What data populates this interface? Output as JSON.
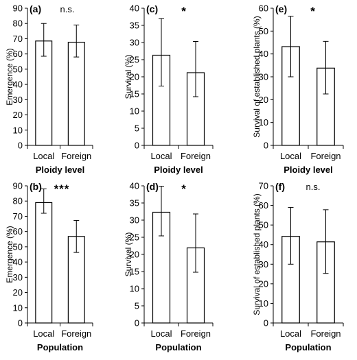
{
  "chart_data": [
    {
      "type": "bar",
      "panel_label": "(a)",
      "significance": "n.s.",
      "categories": [
        "Local",
        "Foreign"
      ],
      "values": [
        68.5,
        67.7
      ],
      "errors_upper": [
        80,
        79
      ],
      "errors_lower": [
        58.5,
        58
      ],
      "xlabel": "Ploidy level",
      "ylabel": "Emergence (%)",
      "ylim": [
        0,
        90
      ],
      "yticks": [
        "0",
        "10",
        "20",
        "30",
        "40",
        "50",
        "60",
        "70",
        "80",
        "90"
      ]
    },
    {
      "type": "bar",
      "panel_label": "(c)",
      "significance": "*",
      "categories": [
        "Local",
        "Foreign"
      ],
      "values": [
        26.3,
        21.2
      ],
      "errors_upper": [
        37,
        30.3
      ],
      "errors_lower": [
        17.3,
        14.2
      ],
      "xlabel": "Ploidy level",
      "ylabel": "Survival (%)",
      "ylim": [
        0,
        40
      ],
      "yticks": [
        "0",
        "5",
        "10",
        "15",
        "20",
        "25",
        "30",
        "35",
        "40"
      ]
    },
    {
      "type": "bar",
      "panel_label": "(e)",
      "significance": "*",
      "categories": [
        "Local",
        "Foreign"
      ],
      "values": [
        43.2,
        33.8
      ],
      "errors_upper": [
        56.5,
        45.5
      ],
      "errors_lower": [
        30,
        22.5
      ],
      "xlabel": "Ploidy level",
      "ylabel": "Survival of established plants (%)",
      "ylim": [
        0,
        60
      ],
      "yticks": [
        "0",
        "10",
        "20",
        "30",
        "40",
        "50",
        "60"
      ]
    },
    {
      "type": "bar",
      "panel_label": "(b)",
      "significance": "***",
      "categories": [
        "Local",
        "Foreign"
      ],
      "values": [
        79,
        56.8
      ],
      "errors_upper": [
        88,
        67.3
      ],
      "errors_lower": [
        72,
        46.3
      ],
      "xlabel": "Population",
      "ylabel": "Emergence (%)",
      "ylim": [
        0,
        90
      ],
      "yticks": [
        "0",
        "10",
        "20",
        "30",
        "40",
        "50",
        "60",
        "70",
        "80",
        "90"
      ]
    },
    {
      "type": "bar",
      "panel_label": "(d)",
      "significance": "*",
      "categories": [
        "Local",
        "Foreign"
      ],
      "values": [
        32.3,
        21.9
      ],
      "errors_upper": [
        39.9,
        31.8
      ],
      "errors_lower": [
        25.4,
        14.8
      ],
      "xlabel": "Population",
      "ylabel": "Survival (%)",
      "ylim": [
        0,
        40
      ],
      "yticks": [
        "0",
        "5",
        "10",
        "15",
        "20",
        "25",
        "30",
        "35",
        "40"
      ]
    },
    {
      "type": "bar",
      "panel_label": "(f)",
      "significance": "n.s.",
      "categories": [
        "Local",
        "Foreign"
      ],
      "values": [
        44.2,
        41.4
      ],
      "errors_upper": [
        59,
        57.8
      ],
      "errors_lower": [
        30,
        25.3
      ],
      "xlabel": "Population",
      "ylabel": "Survival of established plants (%)",
      "ylim": [
        0,
        70
      ],
      "yticks": [
        "0",
        "10",
        "20",
        "30",
        "40",
        "50",
        "60",
        "70"
      ]
    }
  ]
}
